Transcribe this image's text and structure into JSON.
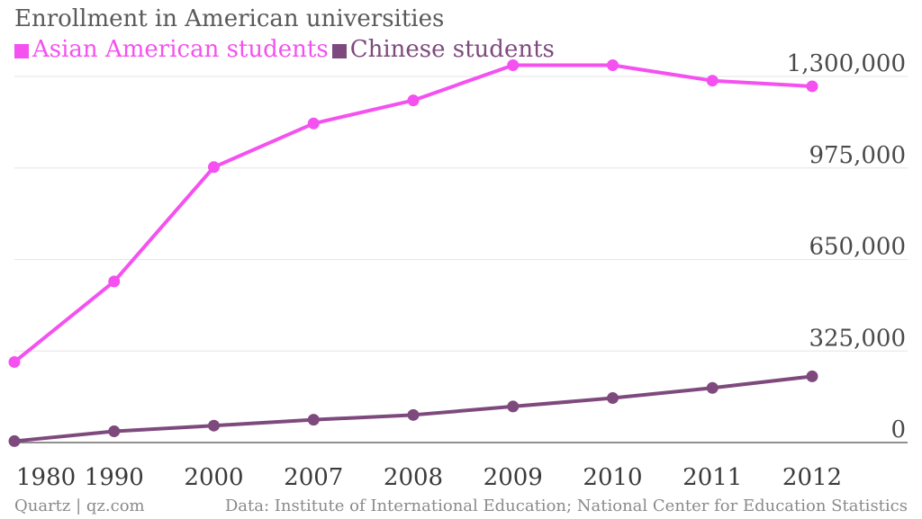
{
  "chart_data": {
    "type": "line",
    "title": "Enrollment in American universities",
    "categories": [
      "1980",
      "1990",
      "2000",
      "2007",
      "2008",
      "2009",
      "2010",
      "2011",
      "2012"
    ],
    "series": [
      {
        "name": "Asian American students",
        "color": "#f451f0",
        "values": [
          286000,
          572000,
          978000,
          1133000,
          1215000,
          1340000,
          1340000,
          1285000,
          1265000
        ]
      },
      {
        "name": "Chinese students",
        "color": "#7e4a7e",
        "values": [
          5000,
          40000,
          60000,
          81000,
          98000,
          128000,
          158000,
          194000,
          235000
        ]
      }
    ],
    "yticks": [
      0,
      325000,
      650000,
      975000,
      1300000
    ],
    "ytick_labels": [
      "0",
      "325,000",
      "650,000",
      "975,000",
      "1,300,000"
    ],
    "ylim": [
      0,
      1300000
    ],
    "xlabel": "",
    "ylabel": "",
    "grid": true,
    "legend_position": "top-left"
  },
  "footer": {
    "credit": "Quartz | qz.com",
    "source": "Data: Institute of International Education; National Center for Education Statistics"
  }
}
